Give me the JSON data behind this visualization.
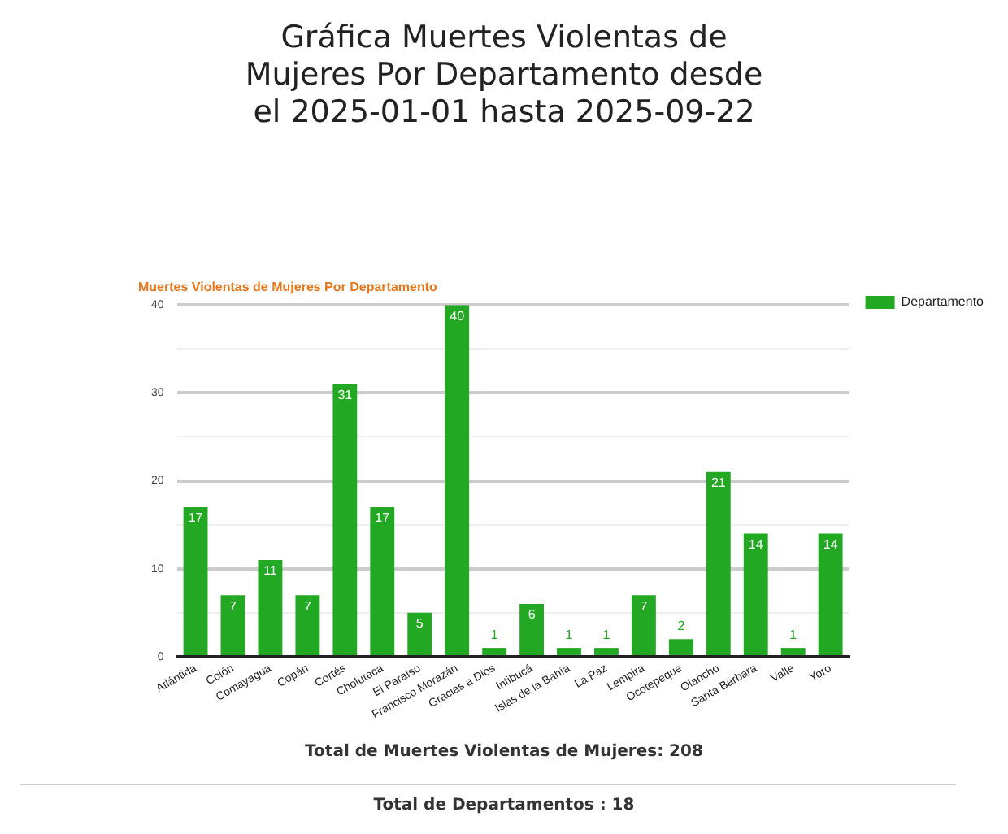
{
  "chart_data": {
    "type": "bar",
    "title": "Gráfica Muertes Violentas de Mujeres Por Departamento desde el 2025-01-01 hasta 2025-09-22",
    "subtitle": "Muertes Violentas de Mujeres Por Departamento",
    "categories": [
      "Atlántida",
      "Colón",
      "Comayagua",
      "Copán",
      "Cortés",
      "Choluteca",
      "El Paraíso",
      "Francisco Morazán",
      "Gracias a Dios",
      "Intibucá",
      "Islas de la Bahía",
      "La Paz",
      "Lempira",
      "Ocotepeque",
      "Olancho",
      "Santa Bárbara",
      "Valle",
      "Yoro"
    ],
    "series": [
      {
        "name": "Departamento",
        "color": "#22a822",
        "values": [
          17,
          7,
          11,
          7,
          31,
          17,
          5,
          40,
          1,
          6,
          1,
          1,
          7,
          2,
          21,
          14,
          1,
          14
        ]
      }
    ],
    "ylim": [
      0,
      40
    ],
    "yticks": [
      0,
      {
        "value": 5,
        "label": null
      },
      10,
      {
        "value": 15,
        "label": null
      },
      20,
      {
        "value": 25,
        "label": null
      },
      30,
      {
        "value": 35,
        "label": null
      },
      40
    ],
    "grid": "y",
    "legend": "top right",
    "data_labels": true,
    "annotations": [
      "Total de Muertes Violentas de Mujeres: 208",
      "Total de Departamentos : 18"
    ]
  }
}
